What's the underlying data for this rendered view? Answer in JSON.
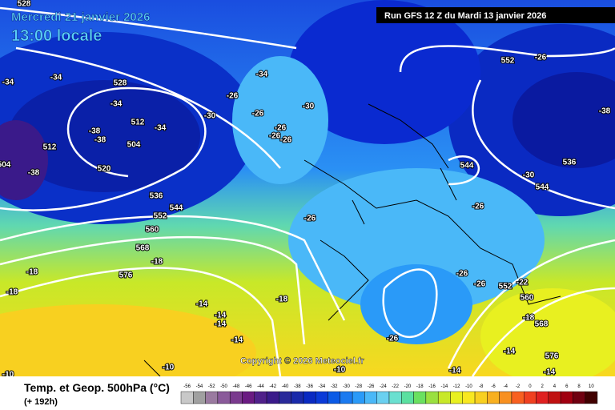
{
  "header": {
    "date": "Mercredi 21 janvier 2026",
    "time": "13:00 locale",
    "run": "Run GFS 12 Z du Mardi 13 janvier 2026"
  },
  "footer": {
    "title": "Temp. et Geop. 500hPa (°C)",
    "lead": "(+ 192h)",
    "copyright": "Copyright © 2026 Meteociel.fr"
  },
  "legend": {
    "labels": [
      -56,
      -54,
      -52,
      -50,
      -48,
      -46,
      -44,
      -42,
      -40,
      -38,
      -36,
      -34,
      -32,
      -30,
      -28,
      -26,
      -24,
      -22,
      -20,
      -18,
      -16,
      -14,
      -12,
      -10,
      -8,
      -6,
      -4,
      -2,
      0,
      2,
      4,
      6,
      8,
      10
    ],
    "colors": [
      "#c8c8c8",
      "#a0a0a0",
      "#9a7aa0",
      "#8a5a9a",
      "#7a3a8e",
      "#6a1a82",
      "#50208a",
      "#3a1a8a",
      "#2a2a9a",
      "#1a2aaa",
      "#0a2ac2",
      "#0a3ad8",
      "#0a5ae6",
      "#1a7af0",
      "#2a9af8",
      "#4ab8f8",
      "#6ad0f0",
      "#6ae0d0",
      "#5ae0a0",
      "#6ae060",
      "#9ae040",
      "#c8e828",
      "#e8f020",
      "#f8e820",
      "#f8d020",
      "#f8b020",
      "#f89020",
      "#f86020",
      "#f04020",
      "#e02020",
      "#c01010",
      "#a00010",
      "#700010",
      "#400000"
    ]
  },
  "map_labels": [
    "528",
    "-34",
    "-34",
    "528",
    "-34",
    "512",
    "-38",
    "-38",
    "504",
    "-34",
    "520",
    "512",
    "-38",
    "504",
    "-30",
    "536",
    "544",
    "-26",
    "-26",
    "-26",
    "552",
    "560",
    "568",
    "-18",
    "-18",
    "576",
    "-18",
    "-14",
    "-14",
    "-14",
    "-14",
    "-10",
    "-10",
    "-34",
    "-30",
    "-26",
    "-26",
    "552",
    "-26",
    "544",
    "-30",
    "544",
    "536",
    "-38",
    "-26",
    "-26",
    "552",
    "-22",
    "560",
    "-18",
    "568",
    "-26",
    "576",
    "-14",
    "-14",
    "-26",
    "-10",
    "-14",
    "-26",
    "-18"
  ]
}
